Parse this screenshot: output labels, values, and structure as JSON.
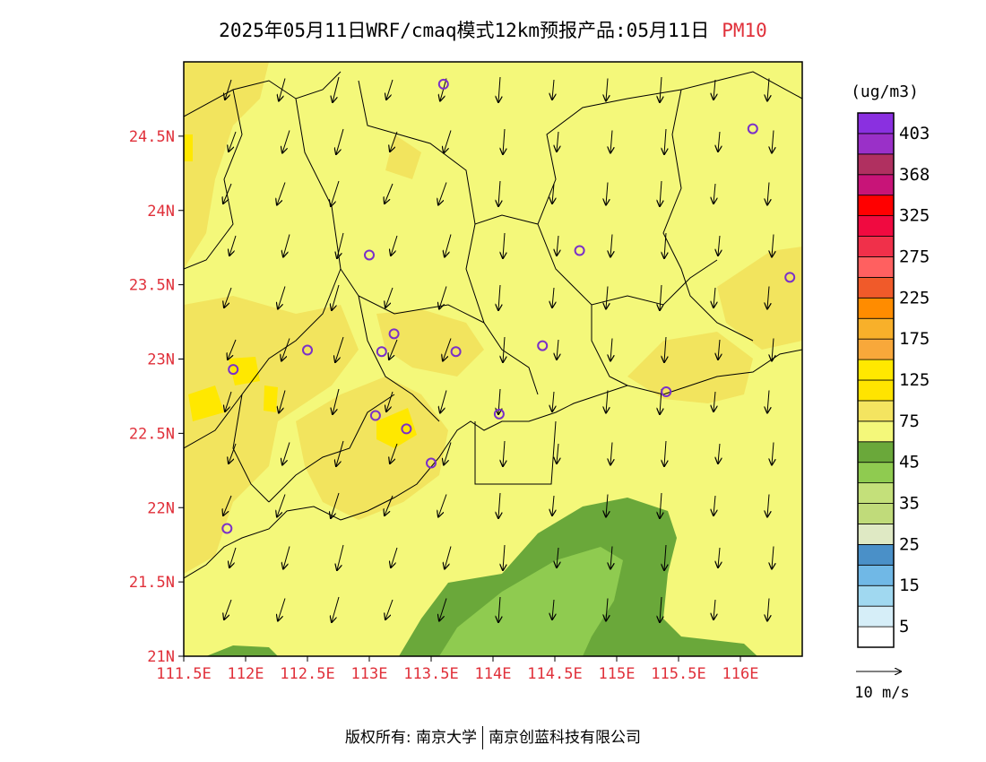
{
  "title": {
    "main": "2025年05月11日WRF/cmaq模式12km预报产品:05月11日",
    "pollutant": "PM10"
  },
  "map": {
    "lon_range": [
      111.5,
      116.5
    ],
    "lat_range": [
      21.0,
      25.0
    ],
    "lat_ticks": [
      {
        "value": 24.5,
        "label": "24.5N"
      },
      {
        "value": 24.0,
        "label": "24N"
      },
      {
        "value": 23.5,
        "label": "23.5N"
      },
      {
        "value": 23.0,
        "label": "23N"
      },
      {
        "value": 22.5,
        "label": "22.5N"
      },
      {
        "value": 22.0,
        "label": "22N"
      },
      {
        "value": 21.5,
        "label": "21.5N"
      },
      {
        "value": 21.0,
        "label": "21N"
      }
    ],
    "lon_ticks": [
      {
        "value": 111.5,
        "label": "111.5E"
      },
      {
        "value": 112.0,
        "label": "112E"
      },
      {
        "value": 112.5,
        "label": "112.5E"
      },
      {
        "value": 113.0,
        "label": "113E"
      },
      {
        "value": 113.5,
        "label": "113.5E"
      },
      {
        "value": 114.0,
        "label": "114E"
      },
      {
        "value": 114.5,
        "label": "114.5E"
      },
      {
        "value": 115.0,
        "label": "115E"
      },
      {
        "value": 115.5,
        "label": "115.5E"
      },
      {
        "value": 116.0,
        "label": "116E"
      }
    ],
    "stations": [
      [
        113.6,
        24.85
      ],
      [
        116.1,
        24.55
      ],
      [
        113.0,
        23.7
      ],
      [
        114.7,
        23.73
      ],
      [
        116.4,
        23.55
      ],
      [
        113.2,
        23.17
      ],
      [
        112.5,
        23.06
      ],
      [
        113.1,
        23.05
      ],
      [
        113.7,
        23.05
      ],
      [
        114.4,
        23.09
      ],
      [
        111.9,
        22.93
      ],
      [
        115.4,
        22.78
      ],
      [
        113.05,
        22.62
      ],
      [
        114.05,
        22.63
      ],
      [
        113.3,
        22.53
      ],
      [
        113.5,
        22.3
      ],
      [
        111.85,
        21.86
      ]
    ]
  },
  "colorbar": {
    "unit": "(ug/m3)",
    "colors": [
      "#ffffff",
      "#d6eef8",
      "#a0d8f0",
      "#70b8e6",
      "#4a90c8",
      "#dfe9c4",
      "#c0db7a",
      "#c4e07a",
      "#8fcb50",
      "#6aa83a",
      "#f4f87a",
      "#f4e460",
      "#ffe400",
      "#ffe800",
      "#f8a83a",
      "#f8b02a",
      "#ff8c00",
      "#f05a2a",
      "#ff6060",
      "#f0304a",
      "#f00a40",
      "#ff0000",
      "#c81478",
      "#b03060",
      "#9a30c8",
      "#8a30e0"
    ],
    "labels": [
      "5",
      "15",
      "25",
      "35",
      "45",
      "75",
      "125",
      "175",
      "225",
      "275",
      "325",
      "368",
      "403"
    ],
    "wind_scale_label": "10 m/s"
  },
  "footer": {
    "copyright": "版权所有: 南京大学",
    "company": "南京创蓝科技有限公司"
  }
}
